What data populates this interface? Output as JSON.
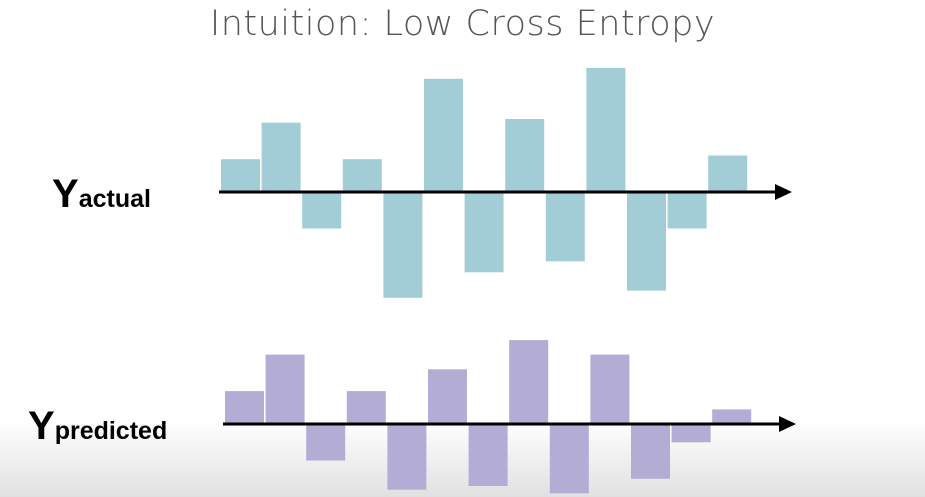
{
  "title": "Intuition: Low Cross Entropy",
  "labels": {
    "actual_main": "Y",
    "actual_sub": "actual",
    "predicted_main": "Y",
    "predicted_sub": "predicted"
  },
  "colors": {
    "actual_bar": "#a2cdd7",
    "predicted_bar": "#b3acd4",
    "axis": "#000000"
  },
  "chart_data": [
    {
      "type": "bar",
      "name": "actual",
      "values": [
        0.9,
        1.9,
        -1.0,
        0.9,
        -2.9,
        3.1,
        -2.2,
        2.0,
        -1.9,
        3.4,
        -2.7,
        -1.0,
        1.0
      ]
    },
    {
      "type": "bar",
      "name": "predicted",
      "values": [
        0.9,
        1.9,
        -1.0,
        0.9,
        -1.8,
        1.5,
        -1.7,
        2.3,
        -1.9,
        1.9,
        -1.5,
        -0.5,
        0.4
      ]
    }
  ]
}
